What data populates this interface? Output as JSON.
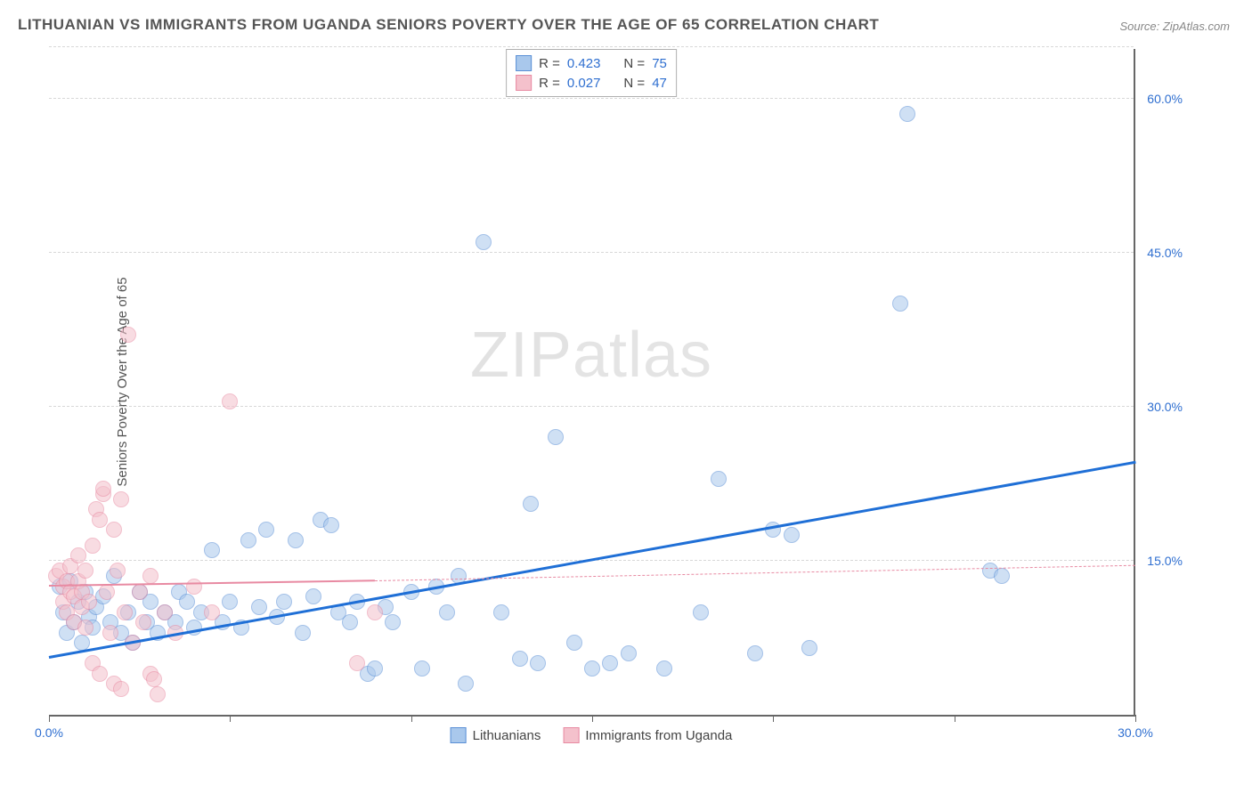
{
  "title": "LITHUANIAN VS IMMIGRANTS FROM UGANDA SENIORS POVERTY OVER THE AGE OF 65 CORRELATION CHART",
  "source": "Source: ZipAtlas.com",
  "watermark_a": "ZIP",
  "watermark_b": "atlas",
  "y_axis_label": "Seniors Poverty Over the Age of 65",
  "chart": {
    "type": "scatter",
    "background_color": "#ffffff",
    "grid_color": "#d8d8d8",
    "axis_color": "#666666",
    "xlim": [
      0,
      30
    ],
    "ylim": [
      0,
      65
    ],
    "x_tick_step": 5,
    "x_tick_labels": {
      "0": "0.0%",
      "30": "30.0%"
    },
    "y_ticks": [
      15,
      30,
      45,
      60
    ],
    "y_tick_labels": {
      "15": "15.0%",
      "30": "30.0%",
      "45": "45.0%",
      "60": "60.0%"
    },
    "point_radius": 9,
    "point_opacity": 0.55,
    "series": [
      {
        "name": "Lithuanians",
        "fill_color": "#a9c8ec",
        "stroke_color": "#5a8fd6",
        "trend": {
          "color": "#1f6fd6",
          "width": 3,
          "style": "solid",
          "y_at_x0": 5.5,
          "y_at_x30": 24.5
        },
        "R": "0.423",
        "N": "75",
        "points": [
          [
            0.3,
            12.5
          ],
          [
            0.4,
            10.0
          ],
          [
            0.5,
            8.0
          ],
          [
            0.6,
            13.0
          ],
          [
            0.7,
            9.0
          ],
          [
            0.8,
            11.0
          ],
          [
            0.9,
            7.0
          ],
          [
            1.0,
            12.0
          ],
          [
            1.1,
            9.5
          ],
          [
            1.2,
            8.5
          ],
          [
            1.3,
            10.5
          ],
          [
            1.5,
            11.5
          ],
          [
            1.7,
            9.0
          ],
          [
            1.8,
            13.5
          ],
          [
            2.0,
            8.0
          ],
          [
            2.2,
            10.0
          ],
          [
            2.3,
            7.0
          ],
          [
            2.5,
            12.0
          ],
          [
            2.7,
            9.0
          ],
          [
            2.8,
            11.0
          ],
          [
            3.0,
            8.0
          ],
          [
            3.2,
            10.0
          ],
          [
            3.5,
            9.0
          ],
          [
            3.6,
            12.0
          ],
          [
            3.8,
            11.0
          ],
          [
            4.0,
            8.5
          ],
          [
            4.2,
            10.0
          ],
          [
            4.5,
            16.0
          ],
          [
            4.8,
            9.0
          ],
          [
            5.0,
            11.0
          ],
          [
            5.3,
            8.5
          ],
          [
            5.5,
            17.0
          ],
          [
            5.8,
            10.5
          ],
          [
            6.0,
            18.0
          ],
          [
            6.3,
            9.5
          ],
          [
            6.5,
            11.0
          ],
          [
            6.8,
            17.0
          ],
          [
            7.0,
            8.0
          ],
          [
            7.3,
            11.5
          ],
          [
            7.5,
            19.0
          ],
          [
            7.8,
            18.5
          ],
          [
            8.0,
            10.0
          ],
          [
            8.3,
            9.0
          ],
          [
            8.5,
            11.0
          ],
          [
            8.8,
            4.0
          ],
          [
            9.0,
            4.5
          ],
          [
            9.3,
            10.5
          ],
          [
            9.5,
            9.0
          ],
          [
            10.0,
            12.0
          ],
          [
            10.3,
            4.5
          ],
          [
            10.7,
            12.5
          ],
          [
            11.0,
            10.0
          ],
          [
            11.3,
            13.5
          ],
          [
            11.5,
            3.0
          ],
          [
            12.0,
            46.0
          ],
          [
            12.5,
            10.0
          ],
          [
            13.0,
            5.5
          ],
          [
            13.3,
            20.5
          ],
          [
            13.5,
            5.0
          ],
          [
            14.0,
            27.0
          ],
          [
            14.5,
            7.0
          ],
          [
            15.0,
            4.5
          ],
          [
            15.5,
            5.0
          ],
          [
            16.0,
            6.0
          ],
          [
            17.0,
            4.5
          ],
          [
            18.0,
            10.0
          ],
          [
            18.5,
            23.0
          ],
          [
            19.5,
            6.0
          ],
          [
            20.0,
            18.0
          ],
          [
            20.5,
            17.5
          ],
          [
            21.0,
            6.5
          ],
          [
            23.5,
            40.0
          ],
          [
            23.7,
            58.5
          ],
          [
            26.0,
            14.0
          ],
          [
            26.3,
            13.5
          ]
        ]
      },
      {
        "name": "Immigrants from Uganda",
        "fill_color": "#f4c1cc",
        "stroke_color": "#e88aa2",
        "trend": {
          "color": "#e88aa2",
          "width": 2,
          "style": "solid",
          "y_at_x0": 12.5,
          "y_at_x9": 13.0,
          "dashed_from_x": 9,
          "y_at_x30": 14.5
        },
        "R": "0.027",
        "N": "47",
        "points": [
          [
            0.2,
            13.5
          ],
          [
            0.3,
            14.0
          ],
          [
            0.4,
            12.5
          ],
          [
            0.4,
            11.0
          ],
          [
            0.5,
            13.0
          ],
          [
            0.5,
            10.0
          ],
          [
            0.6,
            14.5
          ],
          [
            0.6,
            12.0
          ],
          [
            0.7,
            11.5
          ],
          [
            0.7,
            9.0
          ],
          [
            0.8,
            13.0
          ],
          [
            0.8,
            15.5
          ],
          [
            0.9,
            10.5
          ],
          [
            0.9,
            12.0
          ],
          [
            1.0,
            14.0
          ],
          [
            1.0,
            8.5
          ],
          [
            1.1,
            11.0
          ],
          [
            1.2,
            16.5
          ],
          [
            1.2,
            5.0
          ],
          [
            1.3,
            20.0
          ],
          [
            1.4,
            19.0
          ],
          [
            1.4,
            4.0
          ],
          [
            1.5,
            21.5
          ],
          [
            1.5,
            22.0
          ],
          [
            1.6,
            12.0
          ],
          [
            1.7,
            8.0
          ],
          [
            1.8,
            18.0
          ],
          [
            1.8,
            3.0
          ],
          [
            1.9,
            14.0
          ],
          [
            2.0,
            21.0
          ],
          [
            2.0,
            2.5
          ],
          [
            2.1,
            10.0
          ],
          [
            2.2,
            37.0
          ],
          [
            2.3,
            7.0
          ],
          [
            2.5,
            12.0
          ],
          [
            2.6,
            9.0
          ],
          [
            2.8,
            13.5
          ],
          [
            2.8,
            4.0
          ],
          [
            2.9,
            3.5
          ],
          [
            3.0,
            2.0
          ],
          [
            3.2,
            10.0
          ],
          [
            3.5,
            8.0
          ],
          [
            4.0,
            12.5
          ],
          [
            4.5,
            10.0
          ],
          [
            5.0,
            30.5
          ],
          [
            8.5,
            5.0
          ],
          [
            9.0,
            10.0
          ]
        ]
      }
    ]
  },
  "legend_bottom": [
    {
      "swatch_fill": "#a9c8ec",
      "swatch_stroke": "#5a8fd6",
      "label": "Lithuanians"
    },
    {
      "swatch_fill": "#f4c1cc",
      "swatch_stroke": "#e88aa2",
      "label": "Immigrants from Uganda"
    }
  ]
}
